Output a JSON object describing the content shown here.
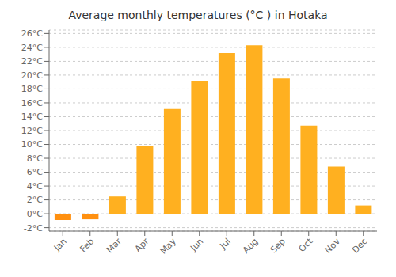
{
  "chart_data": {
    "type": "bar",
    "title": "Average monthly temperatures (°C ) in Hotaka",
    "categories": [
      "Jan",
      "Feb",
      "Mar",
      "Apr",
      "May",
      "Jun",
      "Jul",
      "Aug",
      "Sep",
      "Oct",
      "Nov",
      "Dec"
    ],
    "values": [
      -0.9,
      -0.8,
      2.5,
      9.8,
      15.1,
      19.2,
      23.2,
      24.3,
      19.5,
      12.7,
      6.8,
      1.2
    ],
    "colors": [
      "#FF9010",
      "#FF9010",
      "#FFB020",
      "#FFB020",
      "#FFB020",
      "#FFB020",
      "#FFB020",
      "#FFB020",
      "#FFB020",
      "#FFB020",
      "#FFB020",
      "#FFB020"
    ],
    "ylim": [
      -2.5,
      26.5
    ],
    "yticks": [
      {
        "value": -2,
        "label": "-2°C"
      },
      {
        "value": 0,
        "label": "0°C"
      },
      {
        "value": 2,
        "label": "2°C"
      },
      {
        "value": 4,
        "label": "4°C"
      },
      {
        "value": 6,
        "label": "6°C"
      },
      {
        "value": 8,
        "label": "8°C"
      },
      {
        "value": 10,
        "label": "10°C"
      },
      {
        "value": 12,
        "label": "12°C"
      },
      {
        "value": 14,
        "label": "14°C"
      },
      {
        "value": 16,
        "label": "16°C"
      },
      {
        "value": 18,
        "label": "18°C"
      },
      {
        "value": 20,
        "label": "20°C"
      },
      {
        "value": 22,
        "label": "22°C"
      },
      {
        "value": 24,
        "label": "24°C"
      },
      {
        "value": 26,
        "label": "26°C"
      }
    ],
    "grid": true
  }
}
